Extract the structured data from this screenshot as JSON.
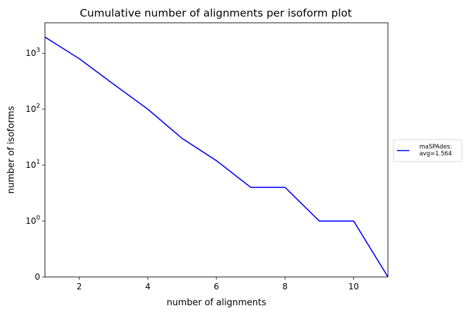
{
  "chart_data": {
    "type": "line",
    "title": "Cumulative number of alignments per isoform plot",
    "xlabel": "number of alignments",
    "ylabel": "number of isoforms",
    "xlim": [
      1,
      11
    ],
    "y_scale": "symlog",
    "y_ticks": [
      {
        "value": 0,
        "label": "0"
      },
      {
        "value": 1,
        "label": "10",
        "exp": "0"
      },
      {
        "value": 10,
        "label": "10",
        "exp": "1"
      },
      {
        "value": 100,
        "label": "10",
        "exp": "2"
      },
      {
        "value": 1000,
        "label": "10",
        "exp": "3"
      }
    ],
    "x_ticks": [
      {
        "value": 2,
        "label": "2"
      },
      {
        "value": 4,
        "label": "4"
      },
      {
        "value": 6,
        "label": "6"
      },
      {
        "value": 8,
        "label": "8"
      },
      {
        "value": 10,
        "label": "10"
      }
    ],
    "grid": false,
    "legend_position": "outside-right",
    "series": [
      {
        "name": "maSPAdes:\navg=1.564",
        "legend_lines": [
          "maSPAdes:",
          "avg=1.564"
        ],
        "color": "#0000ff",
        "x": [
          1,
          2,
          3,
          4,
          5,
          6,
          7,
          8,
          9,
          10,
          11
        ],
        "y": [
          1950,
          800,
          280,
          100,
          30,
          12,
          4,
          4,
          1,
          1,
          0
        ]
      }
    ]
  }
}
